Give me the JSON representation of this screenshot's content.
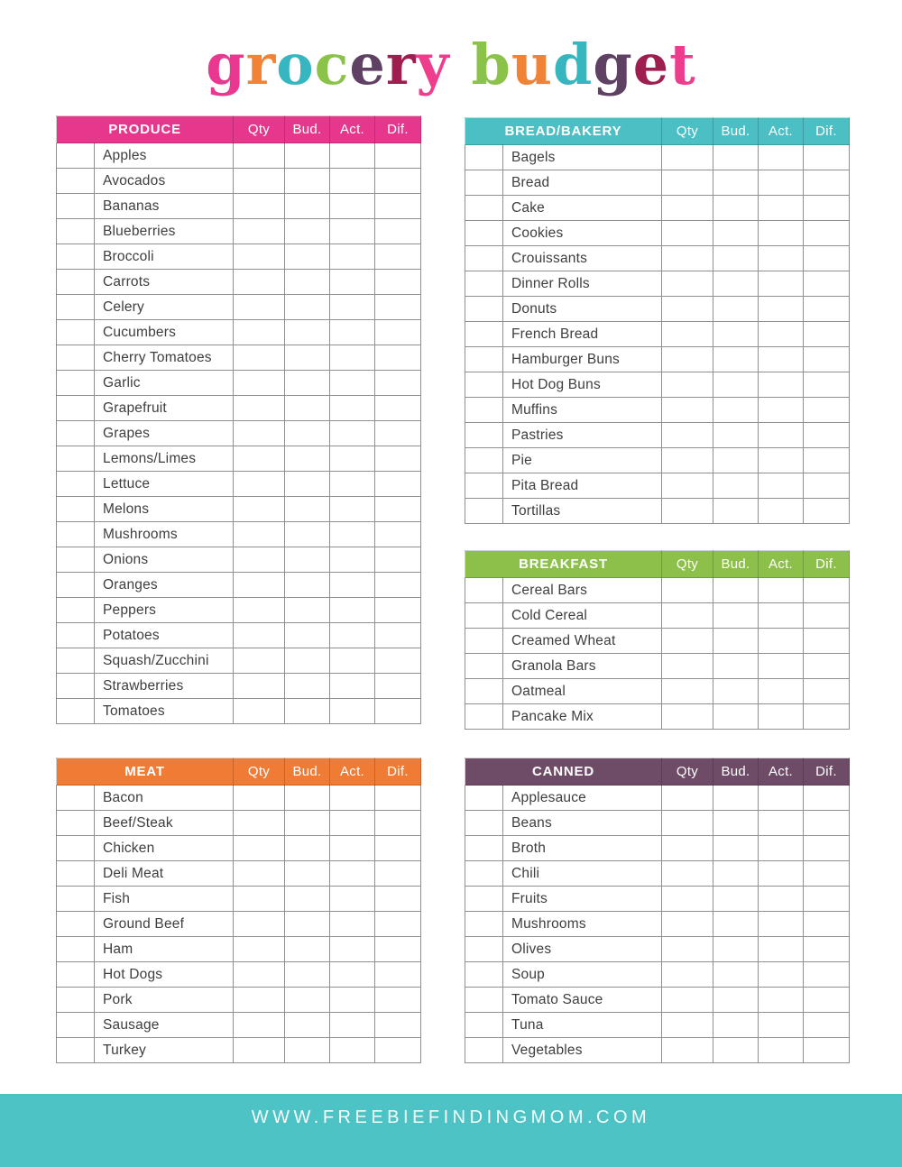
{
  "title": {
    "words": [
      {
        "text": "grocery",
        "letter_colors": [
          "#e8388f",
          "#f08336",
          "#38b6c0",
          "#8bc34a",
          "#5e4163",
          "#9e1e50",
          "#ee3d8d"
        ]
      },
      {
        "text": "budget",
        "letter_colors": [
          "#8bc34a",
          "#f08336",
          "#38b6c0",
          "#5e4163",
          "#9e1e50",
          "#ee3d8d"
        ]
      }
    ]
  },
  "columns": [
    "Qty",
    "Bud.",
    "Act.",
    "Dif."
  ],
  "tables": [
    {
      "id": "produce",
      "label": "PRODUCE",
      "header_color": "#e6378d",
      "items": [
        "Apples",
        "Avocados",
        "Bananas",
        "Blueberries",
        "Broccoli",
        "Carrots",
        "Celery",
        "Cucumbers",
        "Cherry Tomatoes",
        "Garlic",
        "Grapefruit",
        "Grapes",
        "Lemons/Limes",
        "Lettuce",
        "Melons",
        "Mushrooms",
        "Onions",
        "Oranges",
        "Peppers",
        "Potatoes",
        "Squash/Zucchini",
        "Strawberries",
        "Tomatoes"
      ]
    },
    {
      "id": "meat",
      "label": "MEAT",
      "header_color": "#ef7b35",
      "items": [
        "Bacon",
        "Beef/Steak",
        "Chicken",
        "Deli Meat",
        "Fish",
        "Ground Beef",
        "Ham",
        "Hot Dogs",
        "Pork",
        "Sausage",
        "Turkey"
      ]
    },
    {
      "id": "bread-bakery",
      "label": "BREAD/BAKERY",
      "header_color": "#4bbfc4",
      "items": [
        "Bagels",
        "Bread",
        "Cake",
        "Cookies",
        "Crouissants",
        "Dinner Rolls",
        "Donuts",
        "French Bread",
        "Hamburger Buns",
        "Hot Dog Buns",
        "Muffins",
        "Pastries",
        "Pie",
        "Pita Bread",
        "Tortillas"
      ]
    },
    {
      "id": "breakfast",
      "label": "BREAKFAST",
      "header_color": "#8dc04b",
      "items": [
        "Cereal Bars",
        "Cold Cereal",
        "Creamed Wheat",
        "Granola Bars",
        "Oatmeal",
        "Pancake Mix"
      ]
    },
    {
      "id": "canned",
      "label": "CANNED",
      "header_color": "#6e4c67",
      "items": [
        "Applesauce",
        "Beans",
        "Broth",
        "Chili",
        "Fruits",
        "Mushrooms",
        "Olives",
        "Soup",
        "Tomato Sauce",
        "Tuna",
        "Vegetables"
      ]
    }
  ],
  "footer": {
    "url": "WWW.FREEBIEFINDINGMOM.COM",
    "bg_color": "#4ec3c6"
  }
}
